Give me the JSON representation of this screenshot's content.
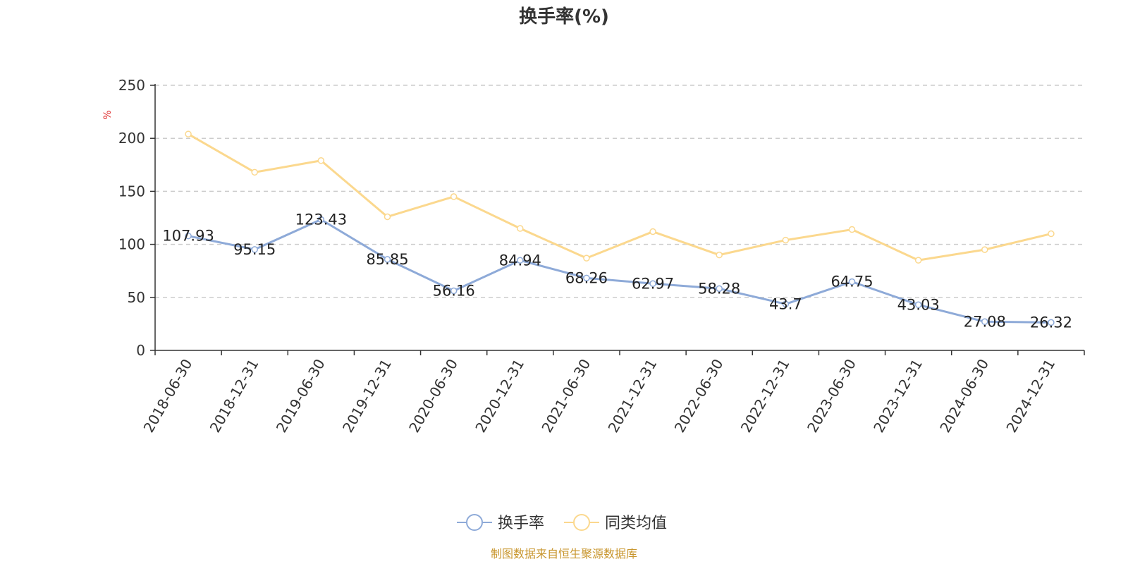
{
  "chart_data": {
    "type": "line",
    "title": "换手率(%)",
    "ylabel": "%",
    "ylim": [
      0,
      250
    ],
    "yticks": [
      0,
      50,
      100,
      150,
      200,
      250
    ],
    "grid": "horizontal-dashed",
    "categories": [
      "2018-06-30",
      "2018-12-31",
      "2019-06-30",
      "2019-12-31",
      "2020-06-30",
      "2020-12-31",
      "2021-06-30",
      "2021-12-31",
      "2022-06-30",
      "2022-12-31",
      "2023-06-30",
      "2023-12-31",
      "2024-06-30",
      "2024-12-31"
    ],
    "series": [
      {
        "name": "换手率",
        "color": "#8eaad8",
        "values": [
          107.93,
          95.15,
          123.43,
          85.85,
          56.16,
          84.94,
          68.26,
          62.97,
          58.28,
          43.7,
          64.75,
          43.03,
          27.08,
          26.32
        ],
        "labels": [
          "107.93",
          "95.15",
          "123.43",
          "85.85",
          "56.16",
          "84.94",
          "68.26",
          "62.97",
          "58.28",
          "43.7",
          "64.75",
          "43.03",
          "27.08",
          "26.32"
        ]
      },
      {
        "name": "同类均值",
        "color": "#fbd88e",
        "values": [
          204,
          168,
          179,
          126,
          145,
          115,
          87,
          112,
          90,
          104,
          114,
          85,
          95,
          110
        ]
      }
    ],
    "legend_position": "bottom-center",
    "source": "制图数据来自恒生聚源数据库",
    "colors": {
      "axis": "#333333",
      "grid": "#cccccc",
      "unit": "#e03030",
      "source": "#c8962e"
    }
  }
}
